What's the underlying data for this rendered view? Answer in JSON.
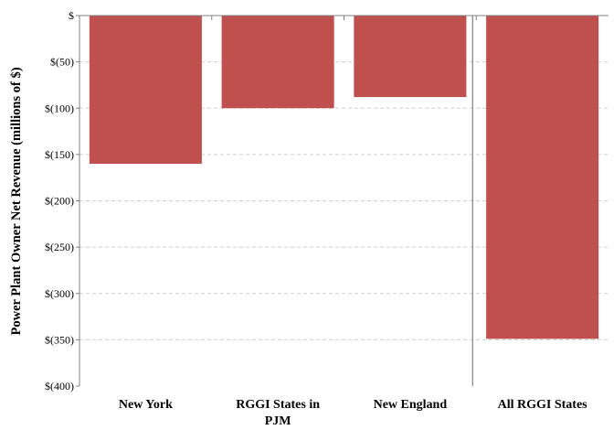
{
  "chart_data": {
    "type": "bar",
    "title": "",
    "xlabel": "",
    "ylabel": "Power Plant Owner Net Revenue (millions of $)",
    "categories": [
      "New York",
      "RGGI States in PJM",
      "New England",
      "All RGGI States"
    ],
    "values": [
      -160,
      -100,
      -88,
      -349
    ],
    "ylim": [
      -400,
      0
    ],
    "y_ticks": [
      0,
      -50,
      -100,
      -150,
      -200,
      -250,
      -300,
      -350,
      -400
    ],
    "y_tick_labels": [
      "$",
      "$(50)",
      "$(100)",
      "$(150)",
      "$(200)",
      "$(250)",
      "$(300)",
      "$(350)",
      "$(400)"
    ],
    "grid": true,
    "bar_color": "#c0504d",
    "separator_before_last": true
  }
}
